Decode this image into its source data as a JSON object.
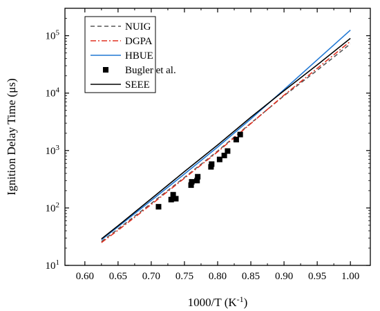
{
  "chart_data": {
    "type": "line",
    "title": "",
    "xlabel": "1000/T (K",
    "xlabel_sup": "-1",
    "xlabel_suffix": ")",
    "ylabel": "Ignition Delay Time (μs)",
    "xlim": [
      0.57,
      1.03
    ],
    "ylim": [
      10,
      300000
    ],
    "yscale": "log",
    "grid": false,
    "legend_position": "top-left",
    "x_ticks": [
      0.6,
      0.65,
      0.7,
      0.75,
      0.8,
      0.85,
      0.9,
      0.95,
      1.0
    ],
    "x_tick_labels": [
      "0.60",
      "0.65",
      "0.70",
      "0.75",
      "0.80",
      "0.85",
      "0.90",
      "0.95",
      "1.00"
    ],
    "y_ticks": [
      10,
      100,
      1000,
      10000,
      100000
    ],
    "y_tick_labels": [
      {
        "base": "10",
        "exp": "1"
      },
      {
        "base": "10",
        "exp": "2"
      },
      {
        "base": "10",
        "exp": "3"
      },
      {
        "base": "10",
        "exp": "4"
      },
      {
        "base": "10",
        "exp": "5"
      }
    ],
    "series": [
      {
        "name": "NUIG",
        "kind": "line",
        "color": "#555555",
        "dash": "dashed",
        "x": [
          0.625,
          0.65,
          0.7,
          0.75,
          0.8,
          0.85,
          0.9,
          0.95,
          1.0
        ],
        "y": [
          26,
          43,
          120,
          340,
          980,
          3000,
          9000,
          25000,
          72000
        ]
      },
      {
        "name": "DGPA",
        "kind": "line",
        "color": "#e03020",
        "dash": "dashdot",
        "x": [
          0.625,
          0.65,
          0.7,
          0.75,
          0.8,
          0.85,
          0.9,
          0.95,
          1.0
        ],
        "y": [
          25,
          41,
          115,
          330,
          950,
          2950,
          9200,
          27000,
          80000
        ]
      },
      {
        "name": "HBUE",
        "kind": "line",
        "color": "#1f77d4",
        "dash": "solid",
        "x": [
          0.625,
          0.65,
          0.7,
          0.75,
          0.8,
          0.85,
          0.9,
          0.95,
          1.0
        ],
        "y": [
          28,
          47,
          135,
          390,
          1150,
          3550,
          11500,
          38000,
          125000
        ]
      },
      {
        "name": "Bugler et al.",
        "kind": "scatter",
        "color": "#000000",
        "marker": "square",
        "x": [
          0.711,
          0.73,
          0.733,
          0.737,
          0.76,
          0.761,
          0.769,
          0.77,
          0.79,
          0.791,
          0.803,
          0.81,
          0.815,
          0.828,
          0.834
        ],
        "y": [
          105,
          140,
          170,
          145,
          250,
          285,
          300,
          350,
          520,
          580,
          700,
          820,
          980,
          1550,
          1900
        ]
      },
      {
        "name": "SEEE",
        "kind": "line",
        "color": "#000000",
        "dash": "solid",
        "x": [
          0.625,
          0.65,
          0.7,
          0.75,
          0.8,
          0.85,
          0.9,
          0.95,
          1.0
        ],
        "y": [
          29,
          49,
          145,
          430,
          1250,
          3800,
          11000,
          31000,
          90000
        ]
      }
    ]
  }
}
